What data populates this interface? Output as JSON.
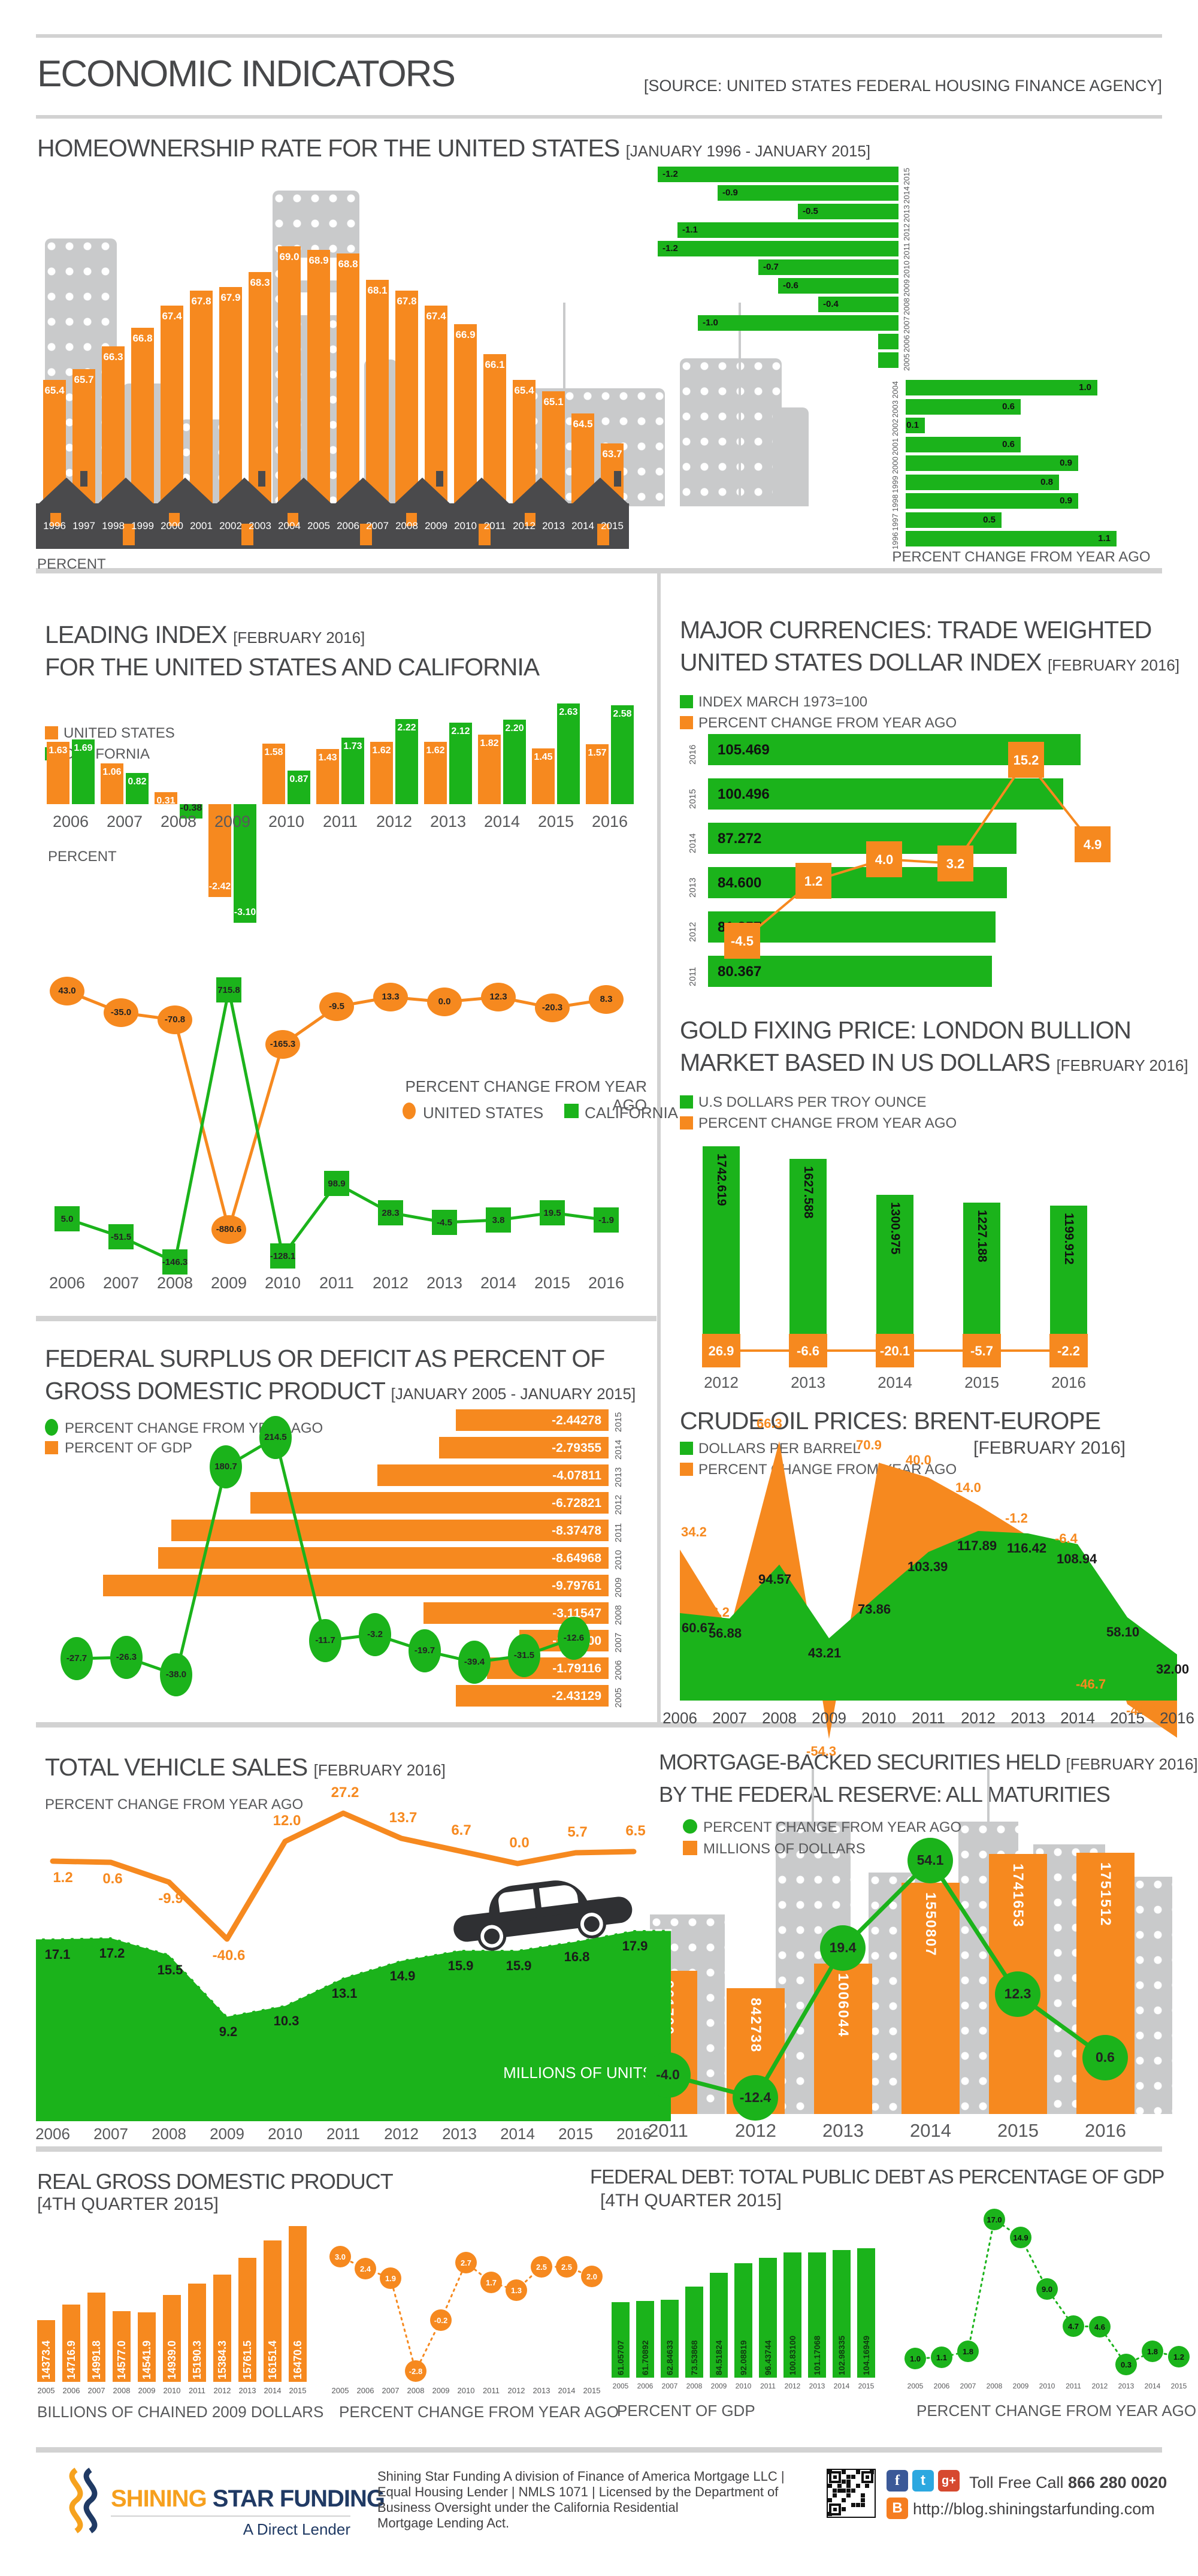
{
  "header": {
    "title": "ECONOMIC INDICATORS",
    "source": "[SOURCE: UNITED STATES FEDERAL HOUSING FINANCE AGENCY]"
  },
  "colors": {
    "orange": "#F6891F",
    "green": "#1BB31B",
    "skyline_gray": "#C9CACB",
    "dark": "#4A4A4C",
    "divider": "#D2D2D2",
    "text_gray": "#58595B",
    "navy": "#203A64"
  },
  "chart_data": [
    {
      "id": "homeownership-rate",
      "type": "bar",
      "title": "HOMEOWNERSHIP RATE FOR THE UNITED STATES",
      "date": "[JANUARY 1996 - JANUARY 2015]",
      "ylabel": "PERCENT",
      "categories": [
        1996,
        1997,
        1998,
        1999,
        2000,
        2001,
        2002,
        2003,
        2004,
        2005,
        2006,
        2007,
        2008,
        2009,
        2010,
        2011,
        2012,
        2013,
        2014,
        2015
      ],
      "values": [
        65.4,
        65.7,
        66.3,
        66.8,
        67.4,
        67.8,
        67.9,
        68.3,
        69.0,
        68.9,
        68.8,
        68.1,
        67.8,
        67.4,
        66.9,
        66.1,
        65.4,
        65.1,
        64.5,
        63.7
      ]
    },
    {
      "id": "homeownership-change",
      "type": "bar",
      "orientation": "horizontal",
      "xlabel": "PERCENT CHANGE FROM YEAR AGO",
      "categories": [
        2015,
        2014,
        2013,
        2012,
        2011,
        2010,
        2009,
        2008,
        2007,
        2006,
        2005,
        2004,
        2003,
        2002,
        2001,
        2000,
        1999,
        1998,
        1997,
        1996
      ],
      "values": [
        -1.2,
        -0.9,
        -0.5,
        -1.1,
        -1.2,
        -0.7,
        -0.6,
        -0.4,
        -1.0,
        -0.1,
        -0.1,
        1.0,
        0.6,
        0.1,
        0.6,
        0.9,
        0.8,
        0.9,
        0.5,
        1.1
      ]
    },
    {
      "id": "leading-index",
      "type": "bar",
      "title": "LEADING INDEX",
      "date": "[FEBRUARY 2016]",
      "title2": "FOR THE UNITED STATES AND CALIFORNIA",
      "ylabel": "PERCENT",
      "categories": [
        2006,
        2007,
        2008,
        2009,
        2010,
        2011,
        2012,
        2013,
        2014,
        2015,
        2016
      ],
      "series": [
        {
          "name": "UNITED STATES",
          "color": "#F6891F",
          "values": [
            1.63,
            1.06,
            0.31,
            -2.42,
            1.58,
            1.43,
            1.62,
            1.62,
            1.82,
            1.45,
            1.57
          ]
        },
        {
          "name": "CALIFORNIA",
          "color": "#1BB31B",
          "values": [
            1.69,
            0.82,
            -0.38,
            -3.1,
            0.87,
            1.73,
            2.22,
            2.12,
            2.2,
            2.63,
            2.58
          ]
        }
      ]
    },
    {
      "id": "leading-index-change",
      "type": "line",
      "title": "PERCENT CHANGE FROM YEAR AGO",
      "categories": [
        2006,
        2007,
        2008,
        2009,
        2010,
        2011,
        2012,
        2013,
        2014,
        2015,
        2016
      ],
      "series": [
        {
          "name": "UNITED STATES",
          "color": "#F6891F",
          "values": [
            43.0,
            -35.0,
            -70.8,
            -880.6,
            -165.3,
            -9.5,
            13.3,
            0.0,
            12.3,
            -20.3,
            8.3
          ]
        },
        {
          "name": "CALIFORNIA",
          "color": "#1BB31B",
          "values": [
            5.0,
            -51.5,
            -146.3,
            715.8,
            -128.1,
            98.9,
            28.3,
            -4.5,
            3.8,
            19.5,
            -1.9
          ]
        }
      ]
    },
    {
      "id": "dollar-index",
      "type": "bar+line",
      "title": "MAJOR CURRENCIES: TRADE WEIGHTED",
      "title2": "UNITED STATES DOLLAR INDEX",
      "date": "[FEBRUARY 2016]",
      "legend": [
        "INDEX MARCH 1973=100",
        "PERCENT CHANGE FROM YEAR AGO"
      ],
      "categories": [
        2016,
        2015,
        2014,
        2013,
        2012,
        2011
      ],
      "index_values": [
        105.469,
        100.496,
        87.272,
        84.6,
        81.357,
        80.367
      ],
      "index_labels": [
        "105.469",
        "100.496",
        "87.272",
        "84.600",
        "81.357",
        "80.367"
      ],
      "change_categories": [
        2011,
        2012,
        2013,
        2014,
        2015,
        2016
      ],
      "change_values": [
        -4.5,
        1.2,
        4.0,
        3.2,
        15.2,
        4.9
      ]
    },
    {
      "id": "gold-price",
      "type": "bar+line",
      "title": "GOLD FIXING PRICE: LONDON BULLION",
      "title2": "MARKET BASED IN US DOLLARS",
      "date": "[FEBRUARY 2016]",
      "legend": [
        "U.S DOLLARS PER TROY OUNCE",
        "PERCENT CHANGE FROM YEAR AGO"
      ],
      "categories": [
        2012,
        2013,
        2014,
        2015,
        2016
      ],
      "price_values": [
        1742.619,
        1627.588,
        1300.975,
        1227.188,
        1199.912
      ],
      "change_values": [
        26.9,
        -6.6,
        -20.1,
        -5.7,
        -2.2
      ]
    },
    {
      "id": "federal-surplus-deficit",
      "type": "bar+line",
      "title": "FEDERAL SURPLUS OR DEFICIT AS PERCENT OF",
      "title2": "GROSS DOMESTIC PRODUCT",
      "date": "[JANUARY 2005 - JANUARY 2015]",
      "legend": [
        "PERCENT CHANGE FROM YEAR AGO",
        "PERCENT OF GDP"
      ],
      "categories": [
        2015,
        2014,
        2013,
        2012,
        2011,
        2010,
        2009,
        2008,
        2007,
        2006,
        2005
      ],
      "gdp_pct_values": [
        -2.44278,
        -2.79355,
        -4.07811,
        -6.72821,
        -8.37478,
        -8.64968,
        -9.79761,
        -3.11547,
        -1.11,
        -1.79116,
        -2.43129
      ],
      "gdp_pct_labels": [
        "-2.44278",
        "-2.79355",
        "-4.07811",
        "-6.72821",
        "-8.37478",
        "-8.64968",
        "-9.79761",
        "-3.11547",
        "-1.11000",
        "-1.79116",
        "-2.43129"
      ],
      "change_categories": [
        2005,
        2006,
        2007,
        2008,
        2009,
        2010,
        2011,
        2012,
        2013,
        2014,
        2015
      ],
      "change_values": [
        -27.7,
        -26.3,
        -38.0,
        180.7,
        214.5,
        -11.7,
        -3.2,
        -19.7,
        -39.4,
        -31.5,
        -12.6
      ]
    },
    {
      "id": "crude-oil",
      "type": "area",
      "title": "CRUDE OIL PRICES: BRENT-EUROPE",
      "date": "[FEBRUARY 2016]",
      "legend": [
        "DOLLARS PER BARREL",
        "PERCENT CHANGE FROM YEAR AGO"
      ],
      "categories": [
        2006,
        2007,
        2008,
        2009,
        2010,
        2011,
        2012,
        2013,
        2014,
        2015,
        2016
      ],
      "price_values": [
        60.67,
        56.88,
        94.57,
        43.21,
        73.86,
        103.39,
        117.89,
        116.42,
        108.94,
        58.1,
        32.0
      ],
      "change_values": [
        34.2,
        -6.2,
        66.3,
        -54.3,
        70.9,
        40.0,
        14.0,
        -1.2,
        -6.4,
        -46.7,
        -44.9
      ]
    },
    {
      "id": "vehicle-sales",
      "type": "area+line",
      "title": "TOTAL VEHICLE SALES",
      "date": "[FEBRUARY 2016]",
      "line_label": "PERCENT CHANGE FROM YEAR AGO",
      "area_label": "MILLIONS OF UNITS",
      "categories": [
        2006,
        2007,
        2008,
        2009,
        2010,
        2011,
        2012,
        2013,
        2014,
        2015,
        2016
      ],
      "units_values": [
        17.1,
        17.2,
        15.5,
        9.2,
        10.3,
        13.1,
        14.9,
        15.9,
        15.9,
        16.8,
        17.9
      ],
      "change_values": [
        1.2,
        0.6,
        -9.9,
        -40.6,
        12.0,
        27.2,
        13.7,
        6.7,
        0.0,
        5.7,
        6.5
      ]
    },
    {
      "id": "mortgage-backed-securities",
      "type": "bar+line",
      "title": "MORTGAGE-BACKED SECURITIES HELD",
      "date": "[FEBRUARY 2016]",
      "title2": "BY THE FEDERAL RESERVE: ALL MATURITIES",
      "legend": [
        "PERCENT CHANGE FROM YEAR AGO",
        "MILLIONS OF DOLLARS"
      ],
      "categories": [
        2011,
        2012,
        2013,
        2014,
        2015,
        2016
      ],
      "dollar_values": [
        961700,
        842738,
        1006044,
        1550807,
        1741653,
        1751512
      ],
      "change_values": [
        -4.0,
        -12.4,
        19.4,
        54.1,
        12.3,
        0.6
      ]
    },
    {
      "id": "real-gdp",
      "type": "bar+line",
      "title": "REAL GROSS DOMESTIC PRODUCT",
      "date": "[4TH QUARTER 2015]",
      "xlabel": "BILLIONS OF CHAINED 2009 DOLLARS",
      "line_label": "PERCENT CHANGE FROM YEAR AGO",
      "categories": [
        2005,
        2006,
        2007,
        2008,
        2009,
        2010,
        2011,
        2012,
        2013,
        2014,
        2015
      ],
      "values": [
        14373.4,
        14716.9,
        14991.8,
        14577.0,
        14541.9,
        14939.0,
        15190.3,
        15384.3,
        15761.5,
        16151.4,
        16470.6
      ],
      "change_values": [
        3.0,
        2.4,
        1.9,
        -2.8,
        -0.2,
        2.7,
        1.7,
        1.3,
        2.5,
        2.5,
        2.0
      ]
    },
    {
      "id": "federal-debt",
      "type": "bar+line",
      "title": "FEDERAL DEBT: TOTAL PUBLIC DEBT AS PERCENTAGE OF GDP",
      "date": "[4TH QUARTER 2015]",
      "xlabel": "PERCENT OF GDP",
      "line_label": "PERCENT CHANGE FROM YEAR AGO",
      "categories": [
        2005,
        2006,
        2007,
        2008,
        2009,
        2010,
        2011,
        2012,
        2013,
        2014,
        2015
      ],
      "values": [
        61.05707,
        61.70892,
        62.84633,
        73.53868,
        84.51824,
        92.08819,
        96.43744,
        100.831,
        101.17068,
        102.98335,
        104.16949
      ],
      "value_labels": [
        "61.05707",
        "61.70892",
        "62.84633",
        "73.53868",
        "84.51824",
        "92.08819",
        "96.43744",
        "100.83100",
        "101.17068",
        "102.98335",
        "104.16949"
      ],
      "change_values": [
        1.0,
        1.1,
        1.8,
        17.0,
        14.9,
        9.0,
        4.7,
        4.6,
        0.3,
        1.8,
        1.2
      ]
    }
  ],
  "footer": {
    "brand_1": "SHINING",
    "brand_2": " STAR FUNDING",
    "tagline": "A Direct Lender",
    "line1": "Shining Star Funding A division of Finance of America Mortgage LLC |",
    "line2": "Equal Housing Lender | NMLS 1071 | Licensed by the Department of",
    "line3": "Business Oversight under the California Residential",
    "line4": "Mortgage Lending Act.",
    "toll_label": "Toll Free Call ",
    "phone": "866 280 0020",
    "blog_url": "http://blog.shiningstarfunding.com"
  }
}
